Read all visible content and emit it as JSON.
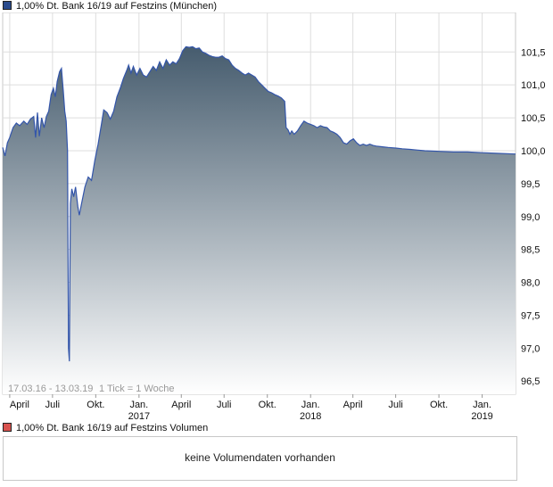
{
  "colors": {
    "price_swatch": "#2a4b8d",
    "volume_swatch": "#d9534f",
    "line": "#3355aa",
    "fill_top": "#465c6e",
    "fill_bottom": "#ffffff",
    "grid": "#dddddd"
  },
  "legend": {
    "price_label": "1,00% Dt. Bank 16/19 auf Festzins (München)",
    "volume_label": "1,00% Dt. Bank 16/19 auf Festzins Volumen"
  },
  "volume_panel": {
    "message": "keine Volumendaten vorhanden"
  },
  "chart_data": {
    "type": "area",
    "date_range_label": "17.03.16 - 13.03.19",
    "tick_info": "1 Tick = 1 Woche",
    "ylim": [
      96.3,
      102.1
    ],
    "yticks": [
      "101,5",
      "101,0",
      "100,5",
      "100,0",
      "99,5",
      "99,0",
      "98,5",
      "98,0",
      "97,5",
      "97,0",
      "96,5"
    ],
    "ytick_values": [
      101.5,
      101.0,
      100.5,
      100.0,
      99.5,
      99.0,
      98.5,
      98.0,
      97.5,
      97.0,
      96.5
    ],
    "x_range": [
      "2016-03-17",
      "2019-03-13"
    ],
    "x_ticks": [
      {
        "date": "2016-04-01",
        "label": "April",
        "year": ""
      },
      {
        "date": "2016-07-01",
        "label": "Juli",
        "year": ""
      },
      {
        "date": "2016-10-01",
        "label": "Okt.",
        "year": ""
      },
      {
        "date": "2017-01-01",
        "label": "Jan.",
        "year": "2017"
      },
      {
        "date": "2017-04-01",
        "label": "April",
        "year": ""
      },
      {
        "date": "2017-07-01",
        "label": "Juli",
        "year": ""
      },
      {
        "date": "2017-10-01",
        "label": "Okt.",
        "year": ""
      },
      {
        "date": "2018-01-01",
        "label": "Jan.",
        "year": "2018"
      },
      {
        "date": "2018-04-01",
        "label": "April",
        "year": ""
      },
      {
        "date": "2018-07-01",
        "label": "Juli",
        "year": ""
      },
      {
        "date": "2018-10-01",
        "label": "Okt.",
        "year": ""
      },
      {
        "date": "2019-01-01",
        "label": "Jan.",
        "year": "2019"
      }
    ],
    "series": [
      {
        "points": [
          [
            "2016-03-17",
            100.05
          ],
          [
            "2016-03-22",
            99.92
          ],
          [
            "2016-03-27",
            100.12
          ],
          [
            "2016-04-01",
            100.2
          ],
          [
            "2016-04-08",
            100.35
          ],
          [
            "2016-04-15",
            100.42
          ],
          [
            "2016-04-22",
            100.38
          ],
          [
            "2016-05-01",
            100.45
          ],
          [
            "2016-05-08",
            100.4
          ],
          [
            "2016-05-15",
            100.48
          ],
          [
            "2016-05-22",
            100.52
          ],
          [
            "2016-05-26",
            100.2
          ],
          [
            "2016-05-30",
            100.58
          ],
          [
            "2016-06-03",
            100.22
          ],
          [
            "2016-06-08",
            100.5
          ],
          [
            "2016-06-13",
            100.35
          ],
          [
            "2016-06-18",
            100.52
          ],
          [
            "2016-06-23",
            100.6
          ],
          [
            "2016-06-28",
            100.85
          ],
          [
            "2016-07-03",
            100.95
          ],
          [
            "2016-07-07",
            100.82
          ],
          [
            "2016-07-11",
            101.05
          ],
          [
            "2016-07-16",
            101.2
          ],
          [
            "2016-07-20",
            101.25
          ],
          [
            "2016-07-24",
            100.9
          ],
          [
            "2016-07-27",
            100.6
          ],
          [
            "2016-07-30",
            100.45
          ],
          [
            "2016-08-02",
            100.0
          ],
          [
            "2016-08-04",
            97.0
          ],
          [
            "2016-08-06",
            96.8
          ],
          [
            "2016-08-08",
            99.2
          ],
          [
            "2016-08-11",
            99.42
          ],
          [
            "2016-08-15",
            99.3
          ],
          [
            "2016-08-19",
            99.45
          ],
          [
            "2016-08-24",
            99.15
          ],
          [
            "2016-08-27",
            99.02
          ],
          [
            "2016-09-01",
            99.2
          ],
          [
            "2016-09-08",
            99.45
          ],
          [
            "2016-09-15",
            99.6
          ],
          [
            "2016-09-22",
            99.55
          ],
          [
            "2016-09-29",
            99.85
          ],
          [
            "2016-10-06",
            100.1
          ],
          [
            "2016-10-13",
            100.4
          ],
          [
            "2016-10-18",
            100.62
          ],
          [
            "2016-10-25",
            100.58
          ],
          [
            "2016-11-01",
            100.48
          ],
          [
            "2016-11-08",
            100.6
          ],
          [
            "2016-11-15",
            100.82
          ],
          [
            "2016-11-22",
            100.95
          ],
          [
            "2016-11-29",
            101.1
          ],
          [
            "2016-12-06",
            101.22
          ],
          [
            "2016-12-10",
            101.3
          ],
          [
            "2016-12-15",
            101.18
          ],
          [
            "2016-12-20",
            101.28
          ],
          [
            "2016-12-27",
            101.15
          ],
          [
            "2017-01-03",
            101.25
          ],
          [
            "2017-01-10",
            101.15
          ],
          [
            "2017-01-17",
            101.12
          ],
          [
            "2017-01-24",
            101.2
          ],
          [
            "2017-01-31",
            101.28
          ],
          [
            "2017-02-07",
            101.22
          ],
          [
            "2017-02-14",
            101.35
          ],
          [
            "2017-02-21",
            101.25
          ],
          [
            "2017-02-28",
            101.38
          ],
          [
            "2017-03-07",
            101.3
          ],
          [
            "2017-03-14",
            101.35
          ],
          [
            "2017-03-21",
            101.32
          ],
          [
            "2017-03-28",
            101.4
          ],
          [
            "2017-04-04",
            101.52
          ],
          [
            "2017-04-11",
            101.58
          ],
          [
            "2017-04-18",
            101.57
          ],
          [
            "2017-04-25",
            101.58
          ],
          [
            "2017-05-02",
            101.55
          ],
          [
            "2017-05-09",
            101.56
          ],
          [
            "2017-05-16",
            101.5
          ],
          [
            "2017-05-23",
            101.48
          ],
          [
            "2017-05-30",
            101.45
          ],
          [
            "2017-06-06",
            101.43
          ],
          [
            "2017-06-13",
            101.42
          ],
          [
            "2017-06-20",
            101.42
          ],
          [
            "2017-06-27",
            101.44
          ],
          [
            "2017-07-04",
            101.4
          ],
          [
            "2017-07-11",
            101.38
          ],
          [
            "2017-07-18",
            101.3
          ],
          [
            "2017-07-25",
            101.25
          ],
          [
            "2017-08-01",
            101.22
          ],
          [
            "2017-08-08",
            101.18
          ],
          [
            "2017-08-15",
            101.15
          ],
          [
            "2017-08-22",
            101.18
          ],
          [
            "2017-08-29",
            101.15
          ],
          [
            "2017-09-05",
            101.12
          ],
          [
            "2017-09-12",
            101.05
          ],
          [
            "2017-09-19",
            101.0
          ],
          [
            "2017-09-26",
            100.95
          ],
          [
            "2017-10-03",
            100.9
          ],
          [
            "2017-10-10",
            100.88
          ],
          [
            "2017-10-17",
            100.85
          ],
          [
            "2017-10-24",
            100.83
          ],
          [
            "2017-10-31",
            100.8
          ],
          [
            "2017-11-07",
            100.75
          ],
          [
            "2017-11-10",
            100.35
          ],
          [
            "2017-11-14",
            100.32
          ],
          [
            "2017-11-18",
            100.25
          ],
          [
            "2017-11-22",
            100.3
          ],
          [
            "2017-11-27",
            100.25
          ],
          [
            "2017-12-04",
            100.3
          ],
          [
            "2017-12-11",
            100.38
          ],
          [
            "2017-12-18",
            100.45
          ],
          [
            "2017-12-25",
            100.42
          ],
          [
            "2018-01-01",
            100.4
          ],
          [
            "2018-01-08",
            100.38
          ],
          [
            "2018-01-15",
            100.35
          ],
          [
            "2018-01-22",
            100.38
          ],
          [
            "2018-01-29",
            100.36
          ],
          [
            "2018-02-05",
            100.35
          ],
          [
            "2018-02-12",
            100.3
          ],
          [
            "2018-02-19",
            100.28
          ],
          [
            "2018-02-26",
            100.25
          ],
          [
            "2018-03-05",
            100.2
          ],
          [
            "2018-03-12",
            100.12
          ],
          [
            "2018-03-19",
            100.1
          ],
          [
            "2018-03-26",
            100.15
          ],
          [
            "2018-04-02",
            100.18
          ],
          [
            "2018-04-09",
            100.12
          ],
          [
            "2018-04-16",
            100.08
          ],
          [
            "2018-04-23",
            100.1
          ],
          [
            "2018-04-30",
            100.08
          ],
          [
            "2018-05-07",
            100.1
          ],
          [
            "2018-05-14",
            100.08
          ],
          [
            "2018-05-21",
            100.07
          ],
          [
            "2018-06-01",
            100.06
          ],
          [
            "2018-06-15",
            100.05
          ],
          [
            "2018-07-01",
            100.04
          ],
          [
            "2018-07-15",
            100.03
          ],
          [
            "2018-08-01",
            100.02
          ],
          [
            "2018-08-15",
            100.01
          ],
          [
            "2018-09-01",
            100.0
          ],
          [
            "2018-10-01",
            99.99
          ],
          [
            "2018-11-01",
            99.98
          ],
          [
            "2018-12-01",
            99.98
          ],
          [
            "2019-01-01",
            99.97
          ],
          [
            "2019-02-01",
            99.96
          ],
          [
            "2019-03-13",
            99.95
          ]
        ]
      }
    ]
  }
}
